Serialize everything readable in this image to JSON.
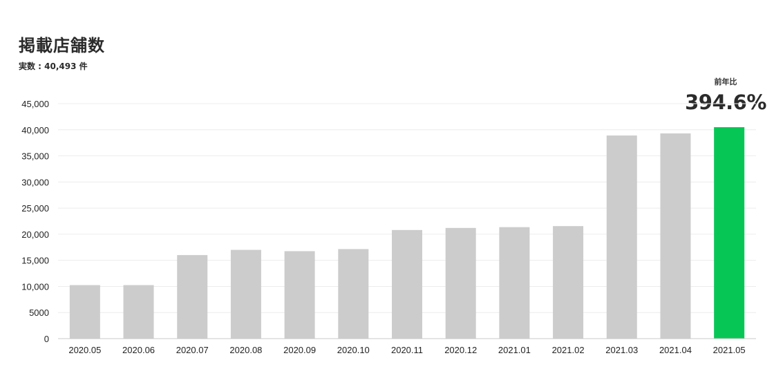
{
  "header": {
    "title": "掲載店舗数",
    "subtitle": "実数 : 40,493 件",
    "yoy_label": "前年比",
    "yoy_value": "394.6%"
  },
  "colors": {
    "bar": "#cccccc",
    "highlight": "#06c755",
    "grid": "#ececec",
    "axis": "#c8c8c8"
  },
  "chart_data": {
    "type": "bar",
    "title": "掲載店舗数",
    "categories": [
      "2020.05",
      "2020.06",
      "2020.07",
      "2020.08",
      "2020.09",
      "2020.10",
      "2020.11",
      "2020.12",
      "2021.01",
      "2021.02",
      "2021.03",
      "2021.04",
      "2021.05"
    ],
    "values": [
      10250,
      10250,
      16000,
      17000,
      16750,
      17150,
      20800,
      21200,
      21350,
      21550,
      38900,
      39300,
      40493
    ],
    "highlight_index": 12,
    "ylim": [
      0,
      45000
    ],
    "yticks": [
      0,
      5000,
      10000,
      15000,
      20000,
      25000,
      30000,
      35000,
      40000,
      45000
    ],
    "ytick_labels": [
      "0",
      "5000",
      "10,000",
      "15,000",
      "20,000",
      "25,000",
      "30,000",
      "35,000",
      "40,000",
      "45,000"
    ],
    "grid": true,
    "legend": "none"
  }
}
